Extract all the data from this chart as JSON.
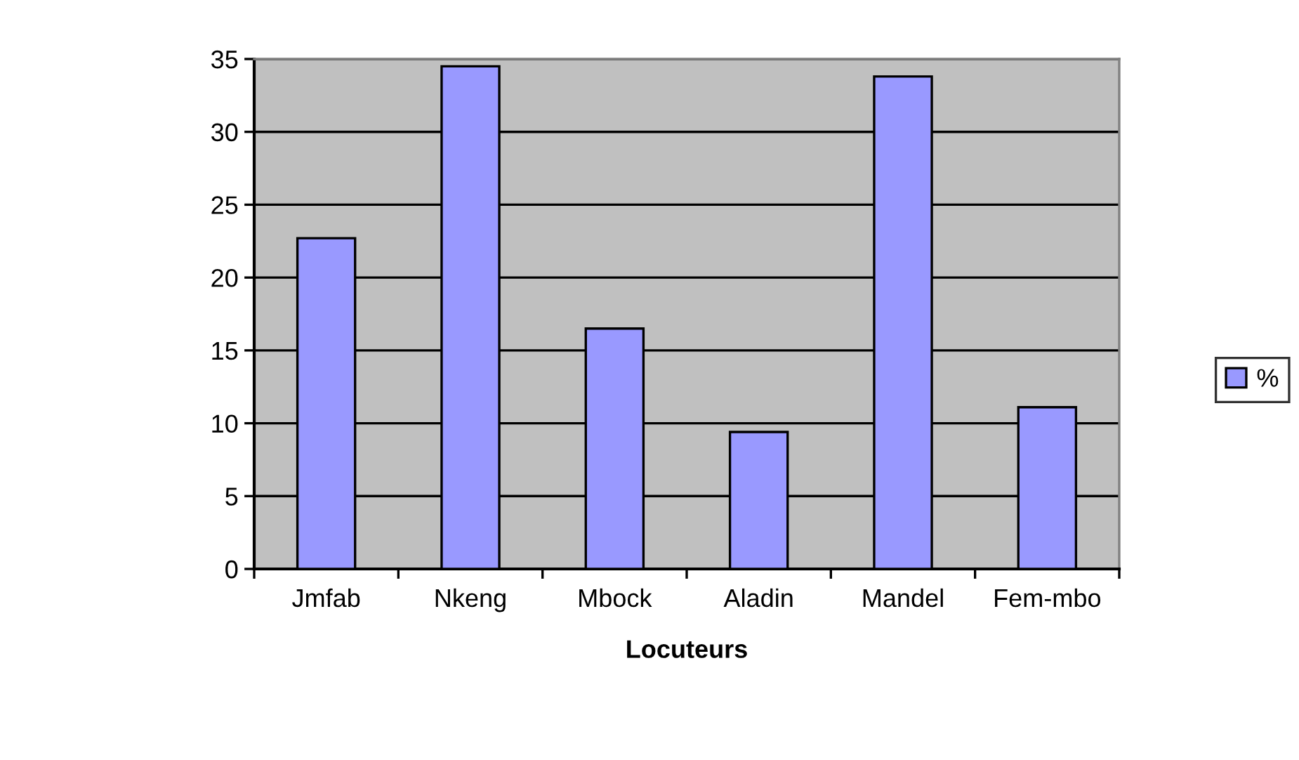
{
  "chart_data": {
    "type": "bar",
    "categories": [
      "Jmfab",
      "Nkeng",
      "Mbock",
      "Aladin",
      "Mandel",
      "Fem-mbo"
    ],
    "series": [
      {
        "name": "%",
        "color": "#9999ff",
        "values": [
          22.7,
          34.5,
          16.5,
          9.4,
          33.8,
          11.1
        ]
      }
    ],
    "xlabel": "Locuteurs",
    "ylim": [
      0,
      35
    ],
    "yticks": [
      0,
      5,
      10,
      15,
      20,
      25,
      30,
      35
    ],
    "grid": "y",
    "legend": "right"
  }
}
